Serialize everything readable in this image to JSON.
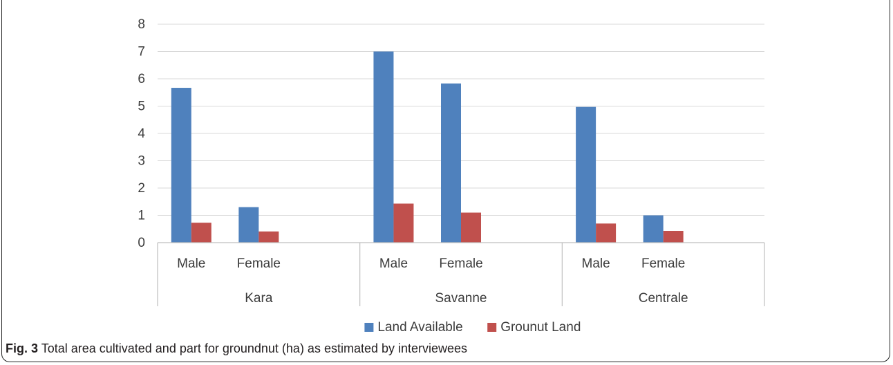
{
  "caption": {
    "label": "Fig. 3",
    "text": "Total area cultivated and part for groundnut (ha) as estimated by interviewees"
  },
  "chart_data": {
    "type": "bar",
    "groups": [
      {
        "region": "Kara",
        "categories": [
          "Male",
          "Female"
        ]
      },
      {
        "region": "Savanne",
        "categories": [
          "Male",
          "Female"
        ]
      },
      {
        "region": "Centrale",
        "categories": [
          "Male",
          "Female"
        ]
      }
    ],
    "series": [
      {
        "name": "Land Available",
        "color": "#4f81bd",
        "values": [
          5.67,
          1.3,
          7.0,
          5.83,
          4.97,
          1.0
        ]
      },
      {
        "name": "Grounut Land",
        "color": "#c0504d",
        "values": [
          0.73,
          0.41,
          1.43,
          1.1,
          0.7,
          0.43
        ]
      }
    ],
    "ylim": [
      0,
      8
    ],
    "yticks": [
      "0",
      "1",
      "2",
      "3",
      "4",
      "5",
      "6",
      "7",
      "8"
    ],
    "grid": true,
    "legend_position": "bottom"
  }
}
